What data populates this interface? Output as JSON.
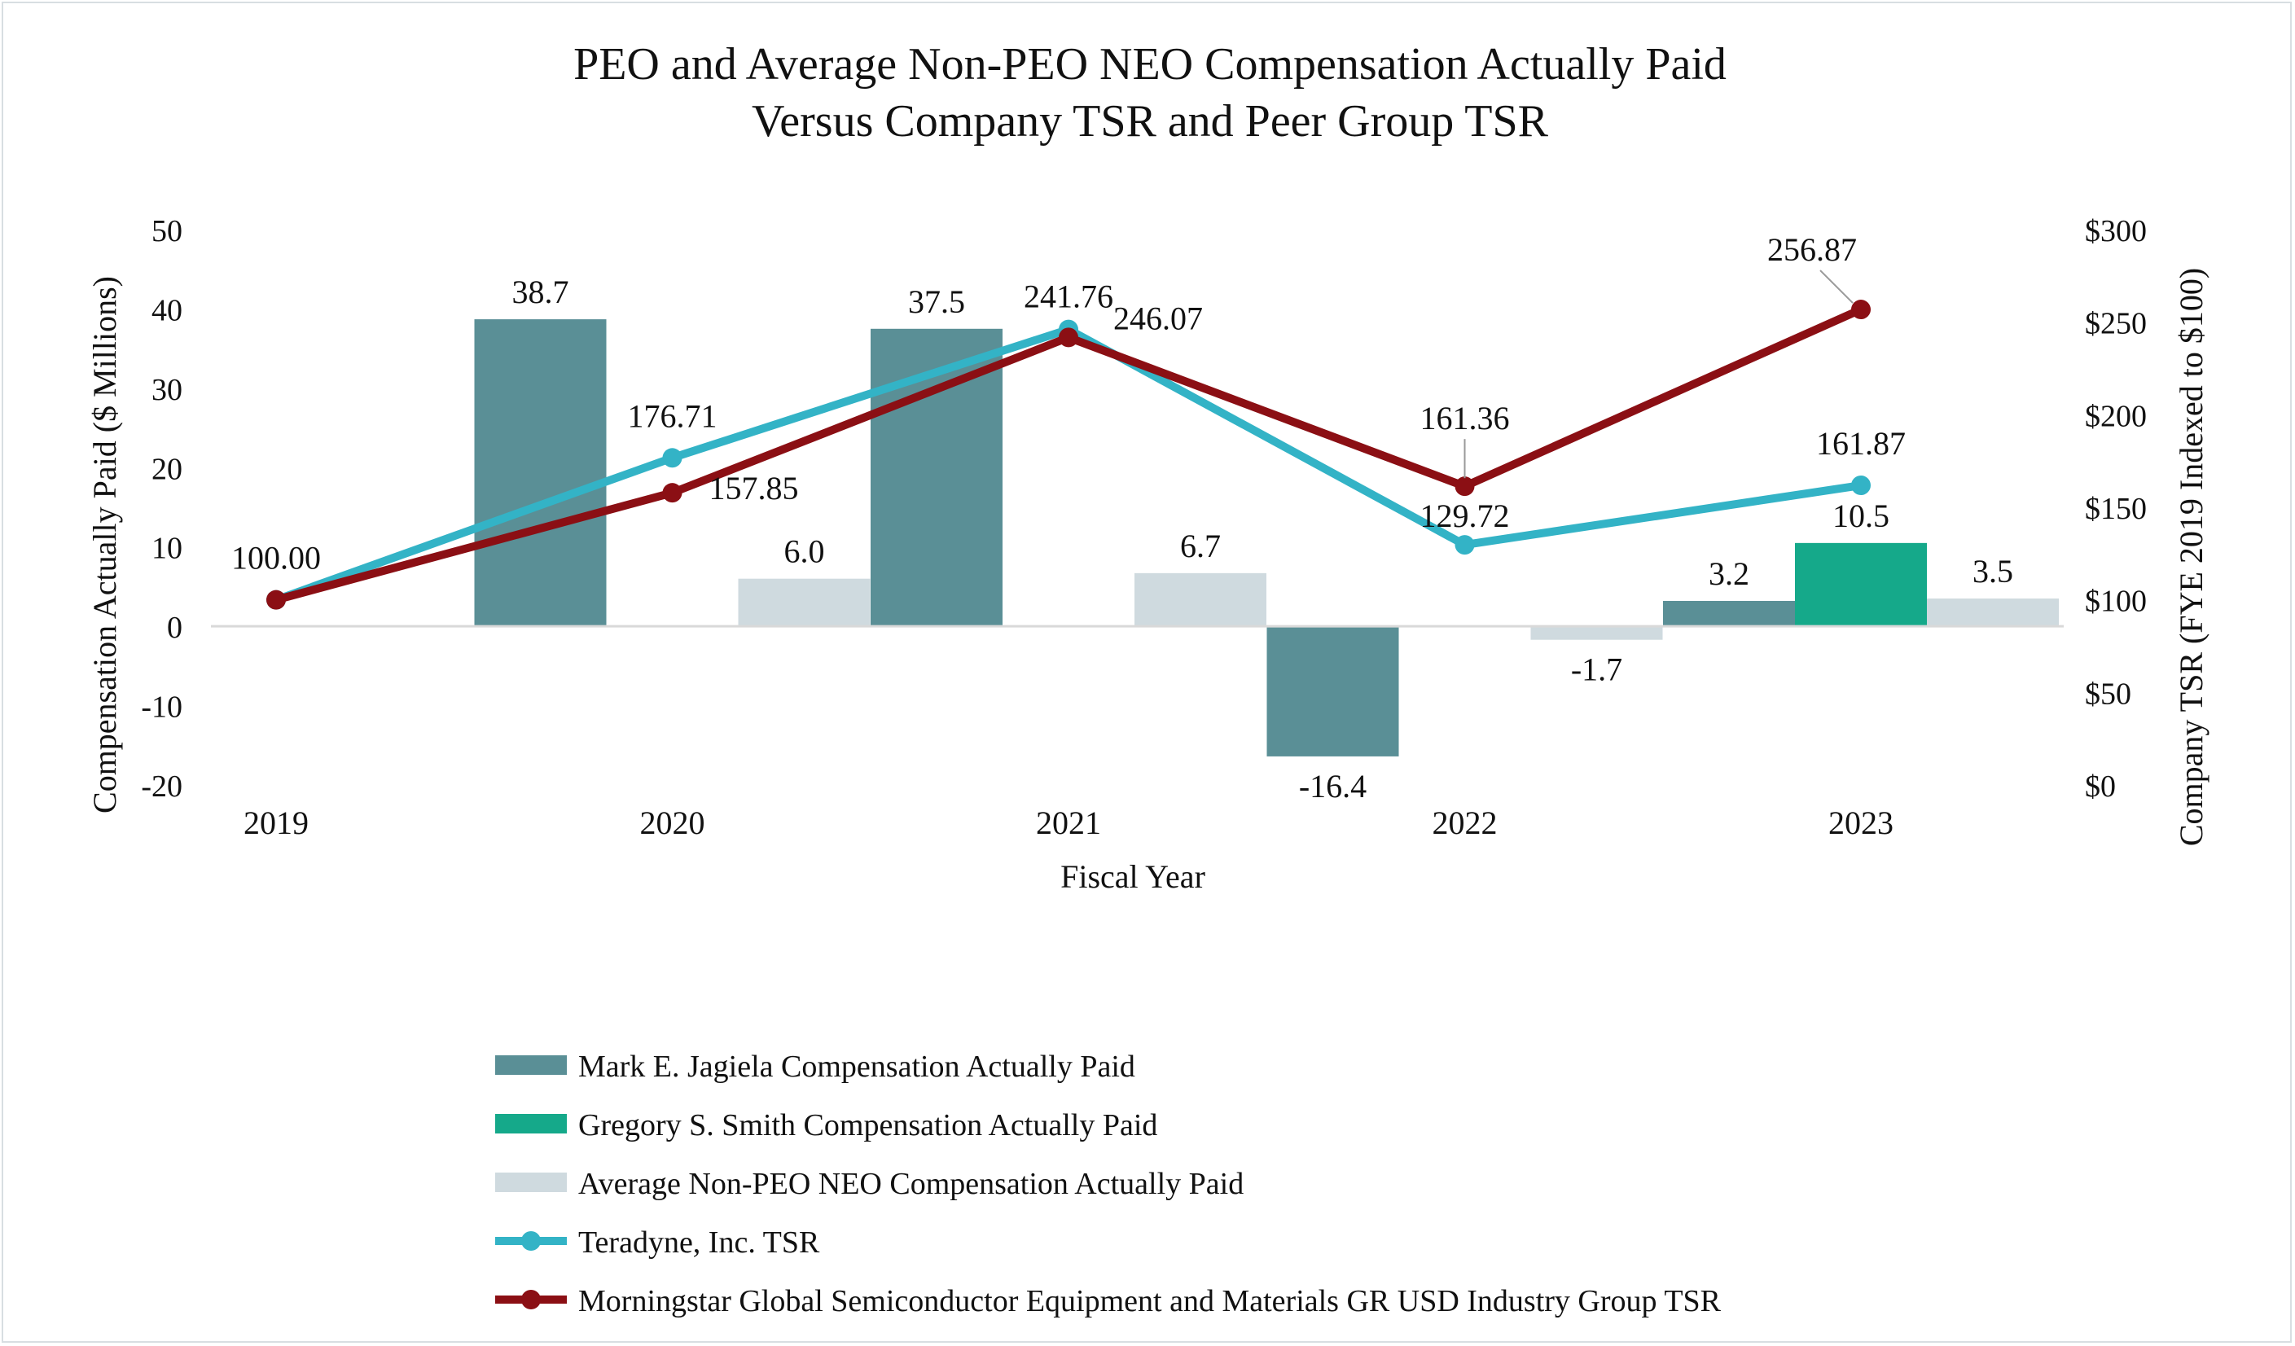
{
  "chart_data": {
    "type": "bar+line",
    "title": "PEO and Average Non-PEO NEO Compensation Actually Paid",
    "subtitle": "Versus Company TSR and Peer Group TSR",
    "xlabel": "Fiscal Year",
    "ylabel_left": "Compensation Actually Paid ($ Millions)",
    "ylabel_right": "Company TSR (FYE 2019 Indexed to $100)",
    "categories": [
      "2019",
      "2020",
      "2021",
      "2022",
      "2023"
    ],
    "ylim_left": [
      -20,
      50
    ],
    "yticks_left": [
      "-20",
      "-10",
      "0",
      "10",
      "20",
      "30",
      "40",
      "50"
    ],
    "ylim_right": [
      0,
      300
    ],
    "yticks_right": [
      "$0",
      "$50",
      "$100",
      "$150",
      "$200",
      "$250",
      "$300"
    ],
    "bar_series": [
      {
        "name": "Mark E. Jagiela Compensation Actually Paid",
        "color": "#5a8f96",
        "values": [
          null,
          38.7,
          37.5,
          -16.4,
          3.2
        ],
        "labels": [
          "",
          "38.7",
          "37.5",
          "-16.4",
          "3.2"
        ]
      },
      {
        "name": "Gregory S. Smith Compensation Actually Paid",
        "color": "#15a98a",
        "values": [
          null,
          null,
          null,
          null,
          10.5
        ],
        "labels": [
          "",
          "",
          "",
          "",
          "10.5"
        ]
      },
      {
        "name": "Average Non-PEO NEO Compensation Actually Paid",
        "color": "#cfdadf",
        "values": [
          null,
          6.0,
          6.7,
          -1.7,
          3.5
        ],
        "labels": [
          "",
          "6.0",
          "6.7",
          "-1.7",
          "3.5"
        ]
      }
    ],
    "line_series": [
      {
        "name": "Teradyne, Inc. TSR",
        "color": "#33b3c6",
        "values": [
          100.0,
          176.71,
          246.07,
          129.72,
          161.87
        ],
        "labels": [
          "",
          "176.71",
          "246.07",
          "129.72",
          "161.87"
        ]
      },
      {
        "name": "Morningstar Global Semiconductor Equipment and Materials GR USD Industry Group TSR",
        "color": "#8b0f14",
        "values": [
          100.0,
          157.85,
          241.76,
          161.36,
          256.87
        ],
        "labels": [
          "100.00",
          "157.85",
          "241.76",
          "161.36",
          "256.87"
        ]
      }
    ],
    "legend_position": "bottom"
  }
}
